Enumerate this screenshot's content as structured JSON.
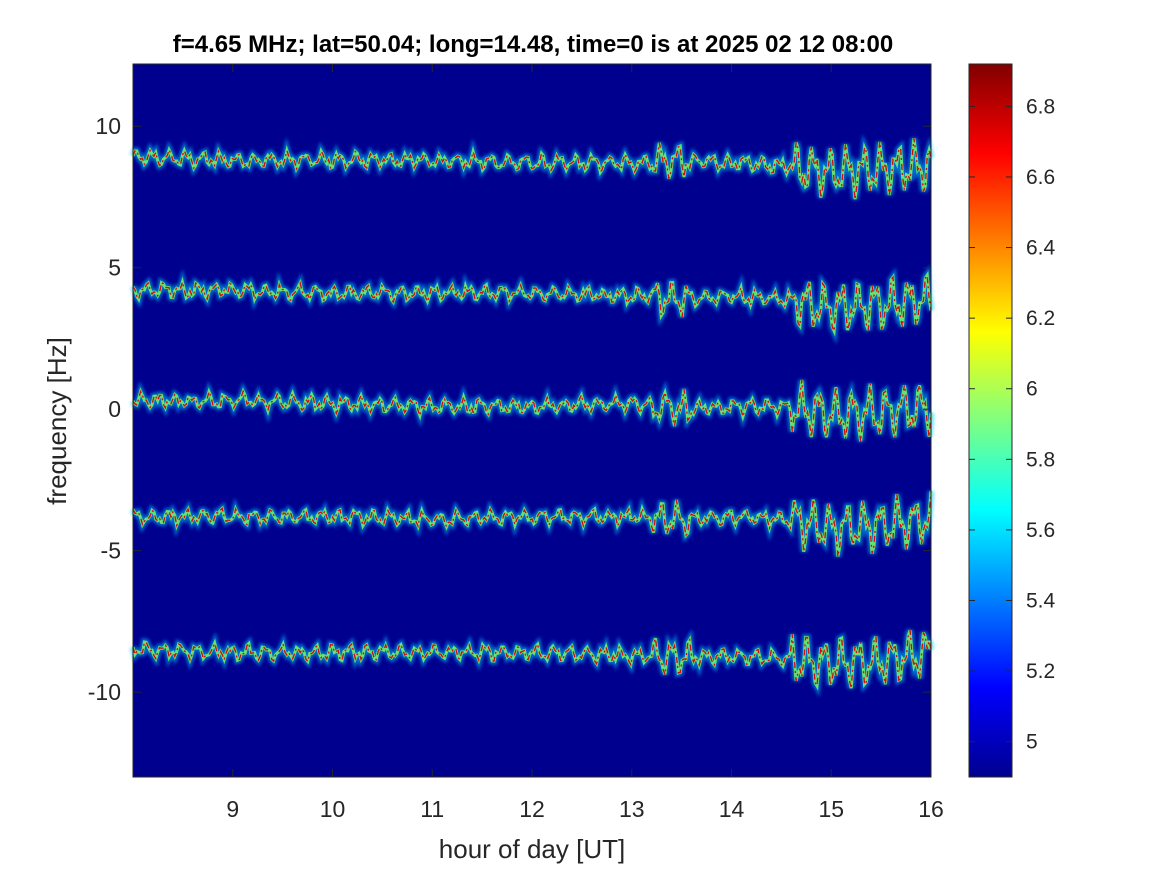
{
  "chart_data": {
    "type": "heatmap",
    "title": "f=4.65 MHz;  lat=50.04; long=14.48, time=0 is at 2025 02 12 08:00",
    "xlabel": "hour of day [UT]",
    "ylabel": "frequency [Hz]",
    "xlim": [
      8,
      16
    ],
    "ylim": [
      -13,
      12.2
    ],
    "xticks": [
      9,
      10,
      11,
      12,
      13,
      14,
      15,
      16
    ],
    "xtick_labels": [
      "9",
      "10",
      "11",
      "12",
      "13",
      "14",
      "15",
      "16"
    ],
    "yticks": [
      10,
      5,
      0,
      -5,
      -10
    ],
    "ytick_labels": [
      "10",
      "5",
      "0",
      "-5",
      "-10"
    ],
    "colorbar": {
      "colormap": "jet",
      "clim": [
        4.9,
        6.92
      ],
      "ticks": [
        6.8,
        6.6,
        6.4,
        6.2,
        6.0,
        5.8,
        5.6,
        5.4,
        5.2,
        5.0
      ],
      "tick_labels": [
        "6.8",
        "6.6",
        "6.4",
        "6.2",
        "6",
        "5.8",
        "5.6",
        "5.4",
        "5.2",
        "5"
      ]
    },
    "background_color": "#00008f",
    "series": [
      {
        "center_hz": 8.9,
        "x": [
          8.0,
          9.0,
          10.0,
          11.0,
          12.0,
          13.0,
          13.5,
          14.0,
          14.5,
          15.0,
          15.5,
          16.0
        ],
        "y": [
          8.9,
          8.8,
          8.8,
          8.8,
          8.7,
          8.7,
          8.8,
          8.7,
          8.6,
          8.4,
          8.5,
          8.6
        ]
      },
      {
        "center_hz": 4.2,
        "x": [
          8.0,
          9.0,
          10.0,
          11.0,
          12.0,
          13.0,
          13.5,
          14.0,
          14.5,
          15.0,
          15.5,
          16.0
        ],
        "y": [
          4.2,
          4.2,
          4.1,
          4.1,
          4.1,
          4.0,
          3.9,
          4.0,
          3.9,
          3.6,
          3.7,
          3.9
        ]
      },
      {
        "center_hz": 0.3,
        "x": [
          8.0,
          9.0,
          10.0,
          11.0,
          12.0,
          13.0,
          13.5,
          14.0,
          14.5,
          15.0,
          15.5,
          16.0
        ],
        "y": [
          0.3,
          0.3,
          0.2,
          0.1,
          0.1,
          0.2,
          0.0,
          0.1,
          0.1,
          -0.2,
          -0.1,
          0.1
        ]
      },
      {
        "center_hz": -3.8,
        "x": [
          8.0,
          9.0,
          10.0,
          11.0,
          12.0,
          13.0,
          13.5,
          14.0,
          14.5,
          15.0,
          15.5,
          16.0
        ],
        "y": [
          -3.8,
          -3.8,
          -3.8,
          -3.9,
          -3.8,
          -3.8,
          -3.9,
          -3.8,
          -3.9,
          -4.2,
          -4.1,
          -3.9
        ]
      },
      {
        "center_hz": -8.5,
        "x": [
          8.0,
          9.0,
          10.0,
          11.0,
          12.0,
          13.0,
          13.5,
          14.0,
          14.5,
          15.0,
          15.5,
          16.0
        ],
        "y": [
          -8.5,
          -8.6,
          -8.6,
          -8.6,
          -8.6,
          -8.7,
          -8.8,
          -8.7,
          -8.8,
          -9.0,
          -8.9,
          -8.6
        ]
      }
    ]
  }
}
